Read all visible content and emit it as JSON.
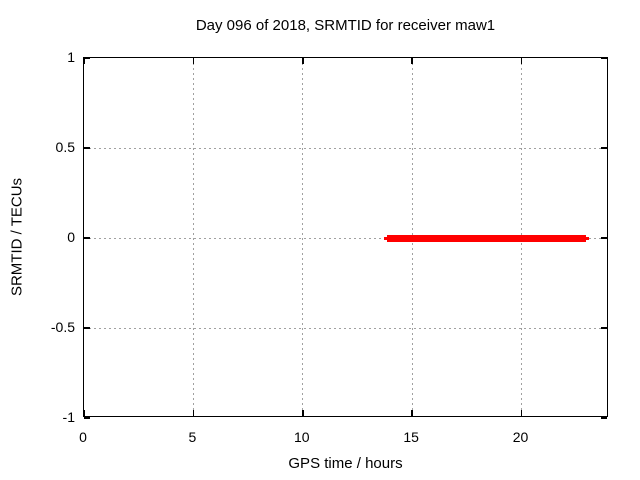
{
  "chart_data": {
    "type": "line",
    "title": "Day 096 of 2018, SRMTID for receiver maw1",
    "xlabel": "GPS time / hours",
    "ylabel": "SRMTID / TECUs",
    "xlim": [
      0,
      24
    ],
    "ylim": [
      -1,
      1
    ],
    "xticks": [
      0,
      5,
      10,
      15,
      20
    ],
    "yticks": [
      -1,
      -0.5,
      0,
      0.5,
      1
    ],
    "grid": true,
    "grid_color": "#a0a0a0",
    "legend_position": "none",
    "background_color": "#ffffff",
    "border_color": "#000000",
    "series": [
      {
        "name": "SRMTID",
        "color": "#ff0000",
        "style": "thick horizontal segment at constant value",
        "y": 0,
        "x_start": 13.85,
        "x_end": 22.95,
        "thin_x_start": 13.7,
        "thin_x_end": 23.1,
        "points": [
          {
            "x": 13.85,
            "y": 0
          },
          {
            "x": 22.95,
            "y": 0
          }
        ]
      }
    ]
  }
}
